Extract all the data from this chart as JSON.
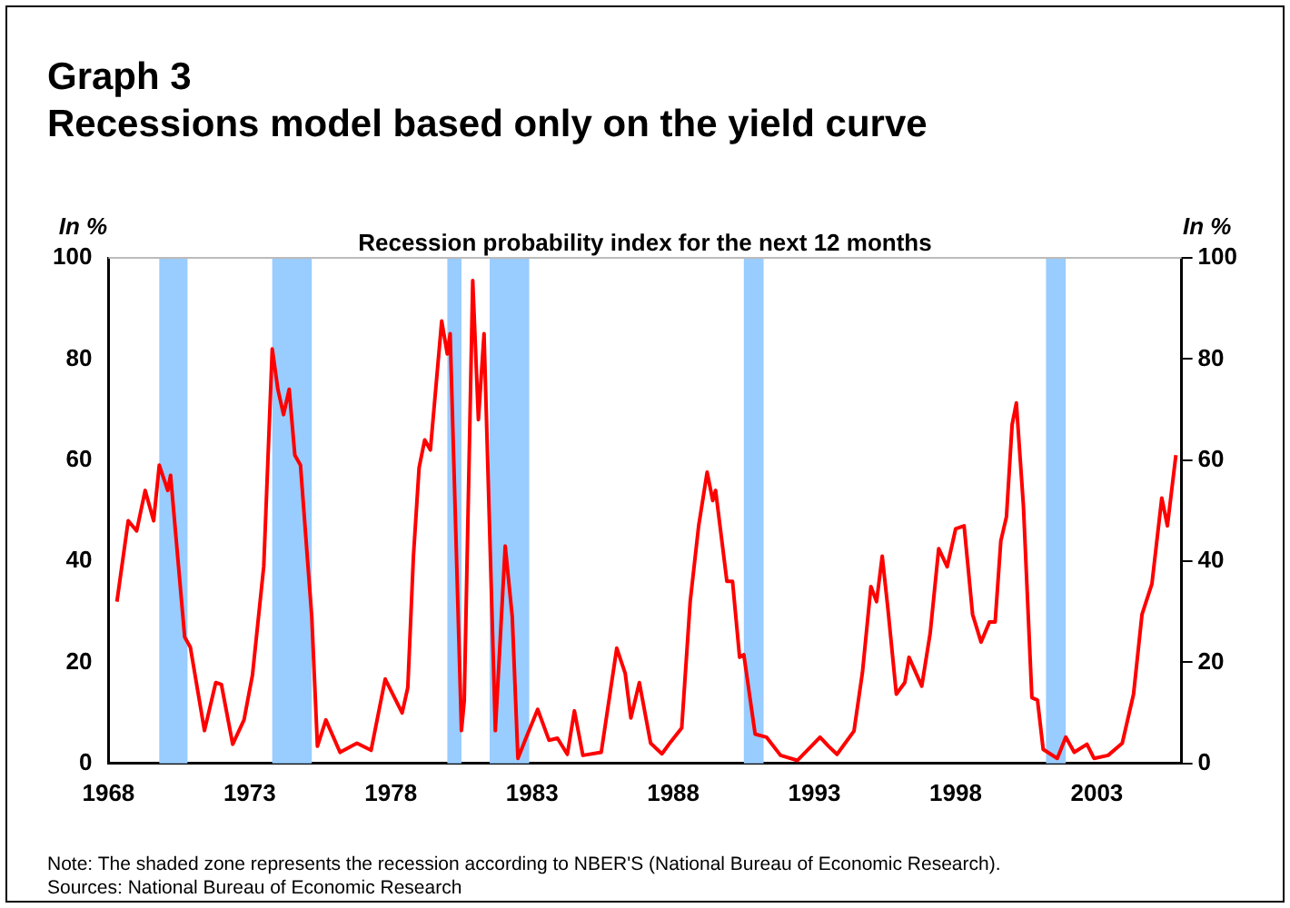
{
  "chart_data": {
    "type": "line",
    "title": "Graph 3\nRecessions model based only on the yield curve",
    "subtitle": "Recession probability index for the next 12 months",
    "ylabel": "In %",
    "y2label": "In %",
    "x": [
      1968.3,
      1968.7,
      1969.0,
      1969.3,
      1969.6,
      1969.8,
      1970.1,
      1970.2,
      1970.7,
      1970.9,
      1971.4,
      1971.8,
      1972.0,
      1972.4,
      1972.8,
      1973.1,
      1973.5,
      1973.8,
      1974.0,
      1974.2,
      1974.4,
      1974.6,
      1974.8,
      1975.2,
      1975.4,
      1975.7,
      1976.2,
      1976.8,
      1977.3,
      1977.8,
      1978.4,
      1978.6,
      1978.8,
      1979.0,
      1979.2,
      1979.4,
      1979.8,
      1980.0,
      1980.1,
      1980.5,
      1980.6,
      1980.9,
      1981.1,
      1981.3,
      1981.7,
      1982.05,
      1982.3,
      1982.5,
      1982.8,
      1983.2,
      1983.6,
      1983.9,
      1984.25,
      1984.5,
      1984.8,
      1985.45,
      1986.0,
      1986.3,
      1986.5,
      1986.8,
      1987.2,
      1987.6,
      1987.9,
      1988.3,
      1988.6,
      1988.9,
      1989.2,
      1989.4,
      1989.5,
      1989.9,
      1990.1,
      1990.35,
      1990.5,
      1990.9,
      1991.3,
      1991.8,
      1992.4,
      1993.2,
      1993.5,
      1993.8,
      1994.4,
      1994.7,
      1995.0,
      1995.2,
      1995.4,
      1995.6,
      1995.9,
      1996.2,
      1996.35,
      1996.8,
      1997.1,
      1997.4,
      1997.7,
      1998.0,
      1998.3,
      1998.6,
      1998.9,
      1999.2,
      1999.4,
      1999.6,
      1999.8,
      2000.0,
      2000.15,
      2000.4,
      2000.7,
      2000.9,
      2001.1,
      2001.6,
      2001.9,
      2002.2,
      2002.65,
      2002.9,
      2003.4,
      2003.9,
      2004.3,
      2004.6,
      2004.95,
      2005.3,
      2005.5,
      2005.8
    ],
    "series": [
      {
        "color": "#ff0000",
        "values": [
          32,
          48,
          46,
          54,
          48,
          59,
          54,
          57,
          25,
          23,
          6.5,
          16,
          15.6,
          3.8,
          8.6,
          17.5,
          39,
          82,
          74,
          69,
          74,
          61,
          59,
          29,
          3.4,
          8.6,
          2.2,
          4,
          2.6,
          16.7,
          10,
          15,
          41,
          58.5,
          64,
          62,
          87.5,
          81,
          85,
          6.5,
          12.4,
          95.5,
          68,
          85,
          6.5,
          43,
          29,
          1,
          5.2,
          10.7,
          4.6,
          5,
          1.8,
          10.4,
          1.6,
          2.2,
          22.8,
          17.8,
          9,
          16,
          4,
          1.9,
          4.2,
          7,
          32,
          47,
          57.6,
          52,
          54,
          36,
          36,
          21,
          21.5,
          5.8,
          5.2,
          1.6,
          0.6,
          5.2,
          3.4,
          1.8,
          6.4,
          18,
          35,
          32,
          41,
          30.7,
          13.7,
          16,
          21,
          15.3,
          25.8,
          42.5,
          38.9,
          46.4,
          47,
          29.5,
          24,
          28,
          28,
          44,
          48.8,
          67,
          71.3,
          51,
          13,
          12.5,
          2.8,
          1,
          5.2,
          2.2,
          3.8,
          1,
          1.6,
          4,
          13.7,
          29.5,
          35.5,
          52.5,
          47,
          61
        ]
      }
    ],
    "bands": [
      {
        "axis": "x",
        "from": 1969.8,
        "to": 1970.8,
        "color": "#99ccff"
      },
      {
        "axis": "x",
        "from": 1973.8,
        "to": 1975.2,
        "color": "#99ccff"
      },
      {
        "axis": "x",
        "from": 1980.0,
        "to": 1980.5,
        "color": "#99ccff"
      },
      {
        "axis": "x",
        "from": 1981.5,
        "to": 1982.9,
        "color": "#99ccff"
      },
      {
        "axis": "x",
        "from": 1990.5,
        "to": 1991.2,
        "color": "#99ccff"
      },
      {
        "axis": "x",
        "from": 2001.2,
        "to": 2001.9,
        "color": "#99ccff"
      }
    ],
    "xlim": [
      1968,
      2006
    ],
    "xticks": [
      1968,
      1973,
      1978,
      1983,
      1988,
      1993,
      1998,
      2003
    ],
    "ylim": [
      0,
      100
    ],
    "yticks": [
      0,
      20,
      40,
      60,
      80,
      100
    ],
    "y2lim": [
      0,
      100
    ],
    "y2ticks": [
      0,
      20,
      40,
      60,
      80,
      100
    ],
    "grid": false,
    "legend": false,
    "marker": "none",
    "line_style": "solid",
    "annotations": [
      "Note: The shaded zone represents the recession according to NBER'S (National Bureau of Economic Research).",
      "Sources: National Bureau of Economic Research"
    ]
  }
}
